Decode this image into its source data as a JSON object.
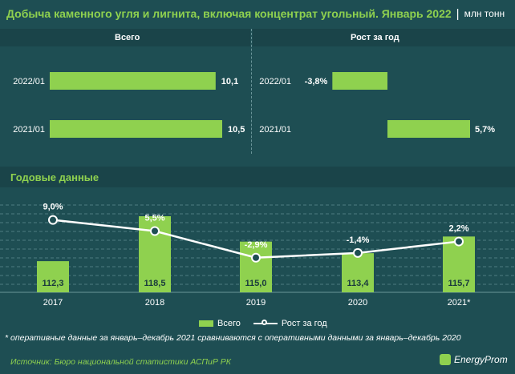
{
  "header": {
    "title": "Добыча каменного угля и лигнита, включая концентрат угольный. Январь 2022",
    "separator": "|",
    "unit": "млн тонн"
  },
  "colors": {
    "background": "#1e4e53",
    "accent_green": "#8fd14f",
    "line_white": "#ffffff"
  },
  "section_title": "Годовые данные",
  "legend": {
    "bars": "Всего",
    "line": "Рост за год"
  },
  "footnote": "* оперативные данные за январь–декабрь 2021 сравниваются с оперативными данными за январь–декабрь 2020",
  "source": "Источник: Бюро национальной статистики АСПиР РК",
  "logo": {
    "icon": "energyprom-logo-icon",
    "text": "EnergyProm"
  },
  "chart_data": [
    {
      "type": "bar",
      "orientation": "horizontal",
      "title": "Всего",
      "categories": [
        "2022/01",
        "2021/01"
      ],
      "values": [
        10.1,
        10.5
      ],
      "value_labels": [
        "10,1",
        "10,5"
      ]
    },
    {
      "type": "bar",
      "orientation": "horizontal",
      "title": "Рост за год",
      "categories": [
        "2022/01",
        "2021/01"
      ],
      "values": [
        -3.8,
        5.7
      ],
      "value_labels": [
        "-3,8%",
        "5,7%"
      ]
    },
    {
      "type": "bar",
      "title": "Годовые данные",
      "categories": [
        "2017",
        "2018",
        "2019",
        "2020",
        "2021*"
      ],
      "series": [
        {
          "name": "Всего",
          "type": "bar",
          "values": [
            112.3,
            118.5,
            115.0,
            113.4,
            115.7
          ],
          "labels": [
            "112,3",
            "118,5",
            "115,0",
            "113,4",
            "115,7"
          ]
        },
        {
          "name": "Рост за год",
          "type": "line",
          "values": [
            9.0,
            5.5,
            -2.9,
            -1.4,
            2.2
          ],
          "labels": [
            "9,0%",
            "5,5%",
            "-2,9%",
            "-1,4%",
            "2,2%"
          ]
        }
      ],
      "grid": true
    }
  ]
}
